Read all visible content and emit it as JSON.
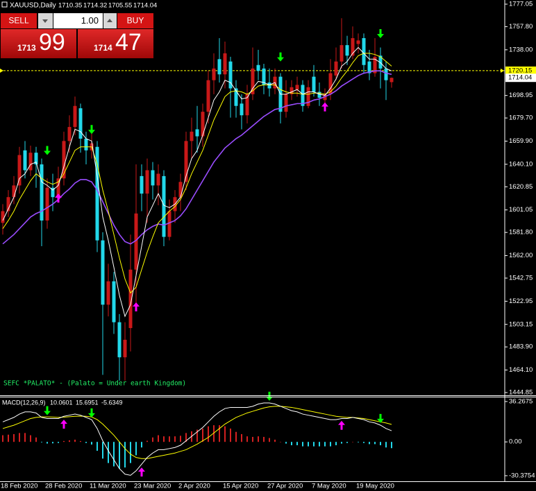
{
  "trade_panel": {
    "sell": "SELL",
    "buy": "BUY",
    "lot": "1.00",
    "bid_big": "1713",
    "bid_small": "99",
    "ask_big": "1714",
    "ask_small": "47"
  },
  "chart_data": [
    {
      "type": "candlestick",
      "title": "XAUUSD,Daily",
      "open": [
        1590,
        1600,
        1612,
        1622,
        1652,
        1635,
        1650,
        1640,
        1592,
        1620,
        1612,
        1628,
        1660,
        1672,
        1688,
        1662,
        1652,
        1655,
        1575,
        1520,
        1540,
        1505,
        1475,
        1500,
        1550,
        1630,
        1615,
        1635,
        1622,
        1630,
        1578,
        1600,
        1612,
        1625,
        1660,
        1670,
        1664,
        1685,
        1712,
        1730,
        1717,
        1728,
        1705,
        1692,
        1682,
        1700,
        1725,
        1722,
        1710,
        1705,
        1715,
        1685,
        1700,
        1704,
        1708,
        1690,
        1715,
        1702,
        1695,
        1700,
        1716,
        1728,
        1742,
        1733,
        1743,
        1748,
        1728,
        1718,
        1733,
        1722,
        1710.35
      ],
      "high": [
        1606,
        1618,
        1630,
        1655,
        1660,
        1656,
        1655,
        1645,
        1628,
        1632,
        1638,
        1668,
        1682,
        1698,
        1692,
        1668,
        1670,
        1660,
        1582,
        1555,
        1548,
        1512,
        1505,
        1580,
        1640,
        1640,
        1645,
        1642,
        1640,
        1635,
        1610,
        1618,
        1632,
        1668,
        1680,
        1690,
        1692,
        1720,
        1735,
        1748,
        1745,
        1732,
        1712,
        1700,
        1708,
        1740,
        1738,
        1726,
        1722,
        1722,
        1718,
        1712,
        1712,
        1715,
        1712,
        1712,
        1725,
        1710,
        1705,
        1730,
        1740,
        1765,
        1750,
        1758,
        1752,
        1752,
        1738,
        1748,
        1740,
        1728,
        1714.32
      ],
      "low": [
        1580,
        1595,
        1606,
        1615,
        1628,
        1630,
        1620,
        1570,
        1585,
        1600,
        1608,
        1622,
        1650,
        1665,
        1650,
        1640,
        1645,
        1565,
        1460,
        1510,
        1495,
        1455,
        1455,
        1480,
        1520,
        1600,
        1590,
        1610,
        1605,
        1570,
        1575,
        1590,
        1600,
        1618,
        1645,
        1650,
        1655,
        1675,
        1700,
        1710,
        1705,
        1680,
        1680,
        1670,
        1675,
        1695,
        1712,
        1700,
        1698,
        1700,
        1675,
        1680,
        1695,
        1698,
        1685,
        1688,
        1698,
        1690,
        1690,
        1695,
        1712,
        1722,
        1725,
        1730,
        1735,
        1718,
        1712,
        1715,
        1705,
        1695,
        1705.55
      ],
      "close": [
        1600,
        1612,
        1622,
        1648,
        1635,
        1650,
        1640,
        1592,
        1620,
        1612,
        1628,
        1660,
        1672,
        1690,
        1662,
        1652,
        1658,
        1575,
        1520,
        1540,
        1505,
        1475,
        1490,
        1550,
        1598,
        1615,
        1635,
        1622,
        1632,
        1578,
        1600,
        1612,
        1625,
        1660,
        1668,
        1664,
        1685,
        1712,
        1722,
        1717,
        1735,
        1705,
        1690,
        1682,
        1700,
        1722,
        1720,
        1708,
        1705,
        1715,
        1685,
        1700,
        1706,
        1708,
        1690,
        1706,
        1702,
        1697,
        1700,
        1718,
        1728,
        1742,
        1733,
        1748,
        1746,
        1725,
        1718,
        1732,
        1722,
        1712,
        1714.04
      ],
      "up_color": "#c81818",
      "down_color": "#22d8ea",
      "overlays": [
        {
          "color": "#9a4dff",
          "values": [
            1572,
            1576,
            1580,
            1585,
            1590,
            1595,
            1598,
            1600,
            1603,
            1606,
            1610,
            1615,
            1619,
            1624,
            1627,
            1627,
            1625,
            1618,
            1608,
            1598,
            1588,
            1580,
            1574,
            1572,
            1575,
            1580,
            1584,
            1587,
            1589,
            1588,
            1590,
            1592,
            1596,
            1602,
            1610,
            1618,
            1626,
            1634,
            1642,
            1648,
            1654,
            1658,
            1662,
            1665,
            1669,
            1673,
            1677,
            1681,
            1684,
            1687,
            1688,
            1690,
            1691,
            1692,
            1692,
            1693,
            1695,
            1696,
            1698,
            1700,
            1703,
            1707,
            1710,
            1713,
            1716,
            1718,
            1719,
            1720,
            1720,
            1718,
            1717
          ]
        },
        {
          "color": "#ffff00",
          "values": [
            1585,
            1592,
            1600,
            1610,
            1618,
            1626,
            1632,
            1628,
            1625,
            1623,
            1625,
            1632,
            1642,
            1652,
            1655,
            1655,
            1655,
            1640,
            1618,
            1600,
            1580,
            1560,
            1542,
            1530,
            1535,
            1550,
            1565,
            1578,
            1590,
            1595,
            1600,
            1604,
            1610,
            1620,
            1632,
            1642,
            1652,
            1665,
            1678,
            1688,
            1698,
            1702,
            1703,
            1702,
            1700,
            1703,
            1707,
            1708,
            1708,
            1708,
            1704,
            1702,
            1701,
            1701,
            1700,
            1700,
            1701,
            1701,
            1700,
            1702,
            1707,
            1714,
            1720,
            1727,
            1733,
            1735,
            1735,
            1734,
            1732,
            1728,
            1724
          ]
        },
        {
          "color": "#ffffff",
          "values": [
            1592,
            1602,
            1612,
            1628,
            1632,
            1640,
            1642,
            1625,
            1622,
            1618,
            1622,
            1638,
            1655,
            1670,
            1668,
            1662,
            1660,
            1630,
            1595,
            1575,
            1552,
            1528,
            1510,
            1520,
            1545,
            1570,
            1595,
            1605,
            1615,
            1605,
            1603,
            1606,
            1612,
            1630,
            1645,
            1652,
            1665,
            1680,
            1695,
            1702,
            1712,
            1710,
            1703,
            1696,
            1697,
            1705,
            1711,
            1710,
            1708,
            1710,
            1700,
            1700,
            1702,
            1704,
            1700,
            1702,
            1702,
            1700,
            1699,
            1705,
            1713,
            1724,
            1728,
            1735,
            1740,
            1735,
            1730,
            1730,
            1727,
            1722,
            1720
          ]
        }
      ],
      "signals": {
        "down": {
          "color": "#00ff00",
          "values": [
            null,
            null,
            null,
            null,
            null,
            null,
            null,
            null,
            1648,
            null,
            null,
            null,
            null,
            null,
            null,
            null,
            1666,
            null,
            null,
            null,
            null,
            null,
            null,
            null,
            null,
            null,
            null,
            null,
            null,
            null,
            null,
            null,
            null,
            null,
            null,
            null,
            null,
            null,
            null,
            null,
            null,
            null,
            null,
            null,
            null,
            null,
            null,
            null,
            null,
            null,
            1728,
            null,
            null,
            null,
            null,
            null,
            null,
            null,
            null,
            null,
            null,
            null,
            null,
            null,
            null,
            null,
            null,
            null,
            1748,
            null,
            null
          ]
        },
        "up": {
          "color": "#ff00ff",
          "values": [
            null,
            null,
            null,
            null,
            null,
            null,
            null,
            null,
            null,
            null,
            1615,
            null,
            null,
            null,
            null,
            null,
            null,
            null,
            null,
            null,
            null,
            null,
            null,
            null,
            1522,
            null,
            null,
            null,
            null,
            null,
            null,
            null,
            null,
            null,
            null,
            null,
            null,
            null,
            null,
            null,
            null,
            null,
            null,
            null,
            null,
            null,
            null,
            null,
            null,
            null,
            null,
            null,
            null,
            null,
            null,
            null,
            null,
            null,
            1693,
            null,
            null,
            null,
            null,
            null,
            null,
            null,
            null,
            null,
            null,
            null,
            null
          ]
        }
      },
      "price_lines": [
        {
          "value": 1720.15,
          "color": "#ffff00"
        }
      ],
      "annotation": "SEFC *PALATO* - (Palato = Under earth Kingdom)",
      "ylim": [
        1442.5,
        1780.6
      ],
      "yticks": [
        1777.05,
        {
          "value": 1757.8,
          "label": "1757.80"
        },
        {
          "value": 1738,
          "label": "1738.00"
        },
        1698.95,
        {
          "value": 1679.7,
          "label": "1679.70"
        },
        {
          "value": 1659.9,
          "label": "1659.90"
        },
        {
          "value": 1640.1,
          "label": "1640.10"
        },
        1620.85,
        1601.05,
        {
          "value": 1581.8,
          "label": "1581.80"
        },
        {
          "value": 1562,
          "label": "1562.00"
        },
        1542.75,
        1522.95,
        1503.15,
        {
          "value": 1483.9,
          "label": "1483.90"
        },
        {
          "value": 1464.1,
          "label": "1464.10"
        },
        1444.85
      ]
    },
    {
      "type": "macd",
      "title": "MACD(12,26,9)",
      "categories": [
        "18 Feb 2020",
        null,
        null,
        null,
        null,
        null,
        null,
        null,
        "28 Feb 2020",
        null,
        null,
        null,
        null,
        null,
        null,
        null,
        "11 Mar 2020",
        null,
        null,
        null,
        null,
        null,
        null,
        null,
        "23 Mar 2020",
        null,
        null,
        null,
        null,
        null,
        null,
        null,
        "2 Apr 2020",
        null,
        null,
        null,
        null,
        null,
        null,
        null,
        "15 Apr 2020",
        null,
        null,
        null,
        null,
        null,
        null,
        null,
        "27 Apr 2020",
        null,
        null,
        null,
        null,
        null,
        null,
        null,
        "7 May 2020",
        null,
        null,
        null,
        null,
        null,
        null,
        null,
        "19 May 2020",
        null,
        null,
        null,
        null,
        null,
        null
      ],
      "macd": {
        "color": "#ffffff",
        "values": [
          18,
          20,
          22,
          25,
          27,
          27,
          26,
          22,
          21,
          21,
          21,
          23,
          24,
          25,
          24,
          22,
          20,
          12,
          1,
          -8,
          -16,
          -24,
          -29,
          -30,
          -26,
          -20,
          -14,
          -10,
          -7,
          -7,
          -6,
          -5,
          -3,
          1,
          5,
          9,
          13,
          18,
          23,
          27,
          30,
          31,
          31,
          31,
          31,
          32,
          34,
          35,
          35,
          34,
          32,
          30,
          28,
          27,
          25,
          24,
          23,
          22,
          21,
          20,
          20,
          21,
          21,
          22,
          21,
          20,
          18,
          17,
          15,
          12,
          10.0601
        ]
      },
      "signal": {
        "color": "#ffff00",
        "values": [
          12,
          13.5,
          15,
          17,
          19,
          21,
          22,
          22.5,
          22.5,
          22.3,
          22,
          22.2,
          22.6,
          23,
          23.2,
          23,
          22.4,
          20,
          16,
          11,
          6,
          0,
          -6,
          -11,
          -14,
          -15,
          -15,
          -14,
          -13,
          -12,
          -11,
          -10,
          -8.5,
          -7,
          -4.5,
          -2,
          1,
          4,
          8,
          12,
          16,
          19,
          22,
          24,
          26,
          27.5,
          29,
          30.5,
          31.5,
          32,
          32,
          31.5,
          31,
          30,
          29,
          28,
          27,
          26,
          25,
          24,
          23,
          22.5,
          22,
          22,
          21.5,
          21,
          20,
          19,
          18,
          17,
          15.6951
        ]
      },
      "histogram": {
        "pos_color": "#d42020",
        "neg_color": "#22d8ea",
        "values": [
          6,
          6.5,
          7,
          8,
          8,
          6,
          4,
          -0.5,
          -1.5,
          -1.3,
          -1,
          0.8,
          1.4,
          2,
          0.8,
          -1,
          -2.4,
          -8,
          -15,
          -19,
          -22,
          -24,
          -23,
          -19,
          -12,
          -5,
          1,
          4,
          6,
          5,
          5,
          5,
          5.5,
          8,
          9.5,
          11,
          12,
          14,
          15,
          15,
          14,
          12,
          9,
          7,
          5,
          4.5,
          5,
          4.5,
          3.5,
          2,
          0,
          -1.5,
          -3,
          -3,
          -4,
          -4,
          -4,
          -4,
          -4,
          -4,
          -3,
          -1.5,
          -1,
          0,
          -0.5,
          -1,
          -2,
          -2,
          -3,
          -5,
          -5.6349
        ]
      },
      "signals": {
        "down": {
          "color": "#00ff00",
          "values": [
            null,
            null,
            null,
            null,
            null,
            null,
            null,
            null,
            24,
            null,
            null,
            null,
            null,
            null,
            null,
            null,
            22,
            null,
            null,
            null,
            null,
            null,
            null,
            null,
            null,
            null,
            null,
            null,
            null,
            null,
            null,
            null,
            null,
            null,
            null,
            null,
            null,
            null,
            null,
            null,
            null,
            null,
            null,
            null,
            null,
            null,
            null,
            null,
            37,
            null,
            null,
            null,
            null,
            null,
            null,
            null,
            null,
            null,
            null,
            null,
            null,
            null,
            null,
            null,
            null,
            null,
            null,
            null,
            17,
            null,
            null
          ]
        },
        "up": {
          "color": "#ff00ff",
          "values": [
            null,
            null,
            null,
            null,
            null,
            null,
            null,
            null,
            null,
            null,
            null,
            20,
            null,
            null,
            null,
            null,
            null,
            null,
            null,
            null,
            null,
            null,
            null,
            null,
            null,
            -23,
            null,
            null,
            null,
            null,
            null,
            null,
            null,
            null,
            null,
            null,
            null,
            null,
            null,
            null,
            null,
            null,
            null,
            null,
            null,
            null,
            null,
            null,
            null,
            null,
            null,
            null,
            null,
            null,
            null,
            null,
            null,
            null,
            null,
            null,
            null,
            19,
            null,
            null,
            null,
            null,
            null,
            null,
            null,
            null,
            null
          ]
        }
      },
      "ylim": [
        -35.4,
        40
      ],
      "yticks": [
        36.2675,
        {
          "value": 0,
          "label": "0.00"
        },
        -30.3754
      ]
    }
  ]
}
